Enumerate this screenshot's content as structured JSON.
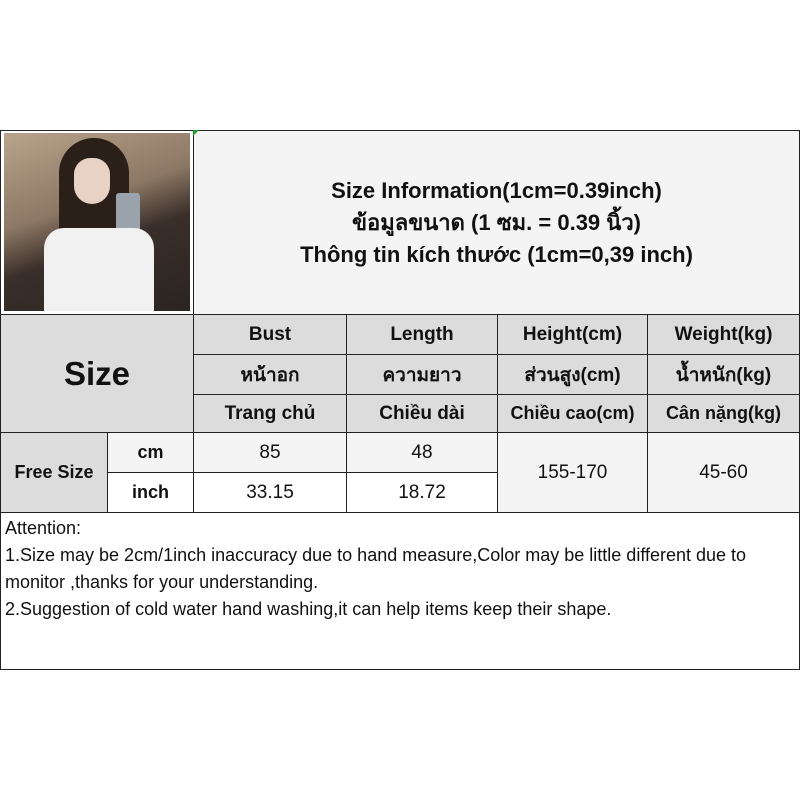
{
  "title": {
    "en": "Size Information(1cm=0.39inch)",
    "th": "ข้อมูลขนาด (1 ซม. = 0.39 นิ้ว)",
    "vi": "Thông tin kích thước (1cm=0,39 inch)"
  },
  "size_label": "Size",
  "columns": [
    {
      "en": "Bust",
      "th": "หน้าอก",
      "vi": "Trang chủ"
    },
    {
      "en": "Length",
      "th": "ความยาว",
      "vi": "Chiều dài"
    },
    {
      "en": "Height(cm)",
      "th": "ส่วนสูง(cm)",
      "vi": "Chiều cao(cm)"
    },
    {
      "en": "Weight(kg)",
      "th": "น้ำหนัก(kg)",
      "vi": "Cân nặng(kg)"
    }
  ],
  "row": {
    "size": "Free Size",
    "units": [
      "cm",
      "inch"
    ],
    "bust": [
      "85",
      "33.15"
    ],
    "length": [
      "48",
      "18.72"
    ],
    "height": "155-170",
    "weight": "45-60"
  },
  "attention": {
    "heading": "Attention:",
    "line1": "1.Size may be 2cm/1inch inaccuracy due to hand measure,Color may be little different due to monitor ,thanks for your understanding.",
    "line2": "2.Suggestion of cold water hand washing,it can help items keep their shape."
  }
}
